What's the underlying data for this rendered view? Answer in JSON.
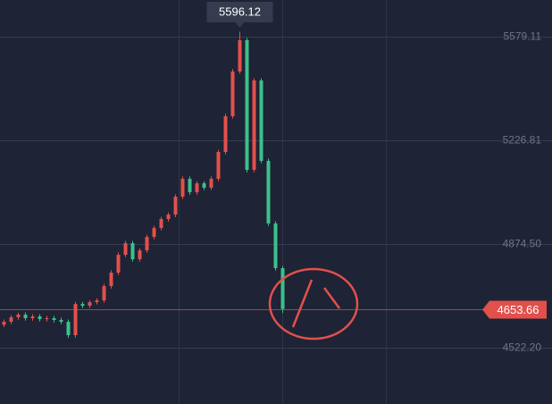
{
  "chart_data": {
    "type": "candlestick",
    "ylim": [
      4330.9,
      5703.6
    ],
    "yticks": [
      5579.11,
      5226.81,
      {
        "value": 4874.5,
        "label": "4874.50"
      },
      {
        "value": 4522.2,
        "label": "4522.20"
      }
    ],
    "grid": true,
    "up_color": "#e2504c",
    "down_color": "#3cc08c",
    "high_label": 5596.12,
    "last_price": 4653.66,
    "series": [
      {
        "open": [
          4600,
          4610.3,
          4625.5,
          4634.6,
          4622.5,
          4628.5,
          4619.4,
          4622.5,
          4616.4,
          4610.3,
          4564.7,
          4670.8,
          4664.7,
          4676.9,
          4683.0,
          4731.5,
          4777.1,
          4837.8,
          4877.3,
          4822.7,
          4853.0,
          4898.6,
          4929.0,
          4959.4,
          4974.5,
          5035.3,
          5096.0,
          5050.5,
          5080.8,
          5065.7,
          5096.0,
          5187.3,
          5308.8,
          5460.6,
          5567.0,
          5126.5,
          5430.3,
          5157.0,
          4944.4,
          4792.5
        ],
        "high": [
          4618,
          4633,
          4641,
          4642,
          4636,
          4636,
          4630,
          4630,
          4624,
          4618,
          4678,
          4678,
          4684,
          4690,
          4739,
          4785,
          4846,
          4885,
          4885,
          4860,
          4906,
          4937,
          4967,
          4982,
          5043,
          5104,
          5104,
          5088,
          5088,
          5104,
          5195,
          5317,
          5469,
          5596.12,
          5575,
          5438,
          5438,
          5165,
          4952,
          4800
        ],
        "low": [
          4592,
          4602,
          4617,
          4614,
          4614,
          4611,
          4611,
          4608,
          4602,
          4556,
          4556,
          4657,
          4657,
          4669,
          4675,
          4723,
          4769,
          4830,
          4815,
          4815,
          4845,
          4891,
          4921,
          4951,
          4966,
          5027,
          5042,
          5042,
          5058,
          5058,
          5088,
          5179,
          5301,
          5453,
          5118,
          5118,
          5149,
          4936,
          4784,
          4640
        ],
        "close": [
          4610.3,
          4625.5,
          4634.6,
          4622.5,
          4628.5,
          4619.4,
          4622.5,
          4616.4,
          4610.3,
          4564.7,
          4670.8,
          4664.7,
          4676.9,
          4683.0,
          4731.5,
          4777.1,
          4837.8,
          4877.3,
          4822.7,
          4853.0,
          4898.6,
          4929.0,
          4959.4,
          4974.5,
          5035.3,
          5096.0,
          5050.5,
          5080.8,
          5065.7,
          5096.0,
          5187.3,
          5308.8,
          5460.6,
          5567.0,
          5126.5,
          5430.3,
          5157.0,
          4944.4,
          4792.5,
          4653.66
        ]
      }
    ]
  }
}
